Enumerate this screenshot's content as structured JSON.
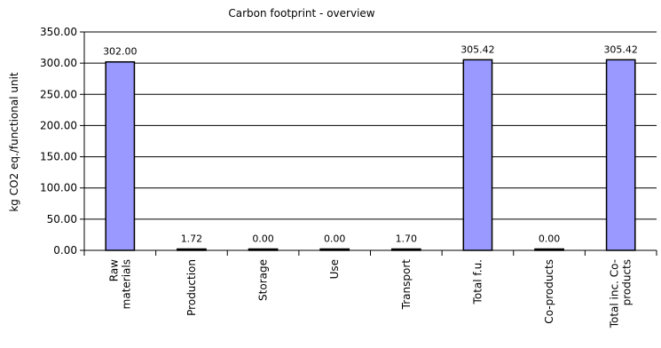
{
  "chart_data": {
    "type": "bar",
    "title": "Carbon footprint - overview",
    "xlabel": "",
    "ylabel": "kg CO2 eq./functional unit",
    "ylim": [
      0,
      350
    ],
    "yticks": [
      "0.00",
      "50.00",
      "100.00",
      "150.00",
      "200.00",
      "250.00",
      "300.00",
      "350.00"
    ],
    "categories": [
      [
        "Raw",
        "materials"
      ],
      [
        "Production"
      ],
      [
        "Storage"
      ],
      [
        "Use"
      ],
      [
        "Transport"
      ],
      [
        "Total f.u."
      ],
      [
        "Co-products"
      ],
      [
        "Total inc. Co-",
        "products"
      ]
    ],
    "values": [
      302.0,
      1.72,
      0.0,
      0.0,
      1.7,
      305.42,
      0.0,
      305.42
    ],
    "value_labels": [
      "302.00",
      "1.72",
      "0.00",
      "0.00",
      "1.70",
      "305.42",
      "0.00",
      "305.42"
    ],
    "grid": true,
    "legend": "none",
    "colors": {
      "bar_fill": "#9999ff",
      "bar_stroke": "#000000",
      "grid": "#000000",
      "background": "#ffffff"
    }
  }
}
